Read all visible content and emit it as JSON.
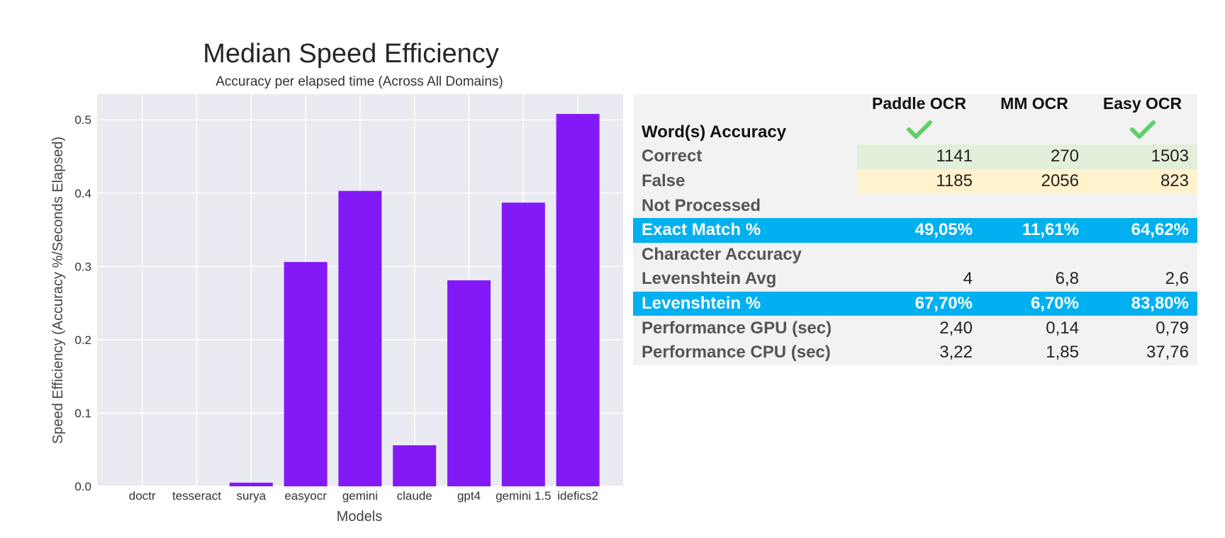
{
  "chart_data": {
    "type": "bar",
    "title": "Median Speed Efficiency",
    "subtitle": "Accuracy per elapsed time (Across All Domains)",
    "xlabel": "Models",
    "ylabel": "Speed Efficiency (Accuracy %/Seconds Elapsed)",
    "categories": [
      "doctr",
      "tesseract",
      "surya",
      "easyocr",
      "gemini",
      "claude",
      "gpt4",
      "gemini 1.5",
      "idefics2"
    ],
    "values": [
      0.0,
      0.0,
      0.005,
      0.306,
      0.403,
      0.056,
      0.281,
      0.387,
      0.508
    ],
    "ylim": [
      0,
      0.535
    ],
    "yticks": [
      "0.0",
      "0.1",
      "0.2",
      "0.3",
      "0.4",
      "0.5"
    ],
    "grid": true,
    "colors": {
      "bar": "#8419f7",
      "plot_bg": "#eaeaf2",
      "grid": "#ffffff"
    }
  },
  "table": {
    "headers": [
      "Paddle OCR",
      "MM OCR",
      "Easy OCR"
    ],
    "checked": [
      true,
      false,
      true
    ],
    "check_color": "#5fd068",
    "rows": [
      {
        "label": "Word(s) Accuracy",
        "values": [
          "",
          "",
          ""
        ],
        "style": "section"
      },
      {
        "label": "Correct",
        "values": [
          "1141",
          "270",
          "1503"
        ],
        "style": "correct"
      },
      {
        "label": "False",
        "values": [
          "1185",
          "2056",
          "823"
        ],
        "style": "false"
      },
      {
        "label": "Not Processed",
        "values": [
          "",
          "",
          ""
        ],
        "style": "plain"
      },
      {
        "label": "Exact Match %",
        "values": [
          "49,05%",
          "11,61%",
          "64,62%"
        ],
        "style": "blue"
      },
      {
        "label": "Character Accuracy",
        "values": [
          "",
          "",
          ""
        ],
        "style": "plain"
      },
      {
        "label": "Levenshtein Avg",
        "values": [
          "4",
          "6,8",
          "2,6"
        ],
        "style": "plain"
      },
      {
        "label": "Levenshtein %",
        "values": [
          "67,70%",
          "6,70%",
          "83,80%"
        ],
        "style": "blue"
      },
      {
        "label": "Performance GPU (sec)",
        "values": [
          "2,40",
          "0,14",
          "0,79"
        ],
        "style": "plain"
      },
      {
        "label": "Performance CPU (sec)",
        "values": [
          "3,22",
          "1,85",
          "37,76"
        ],
        "style": "plain"
      }
    ]
  }
}
